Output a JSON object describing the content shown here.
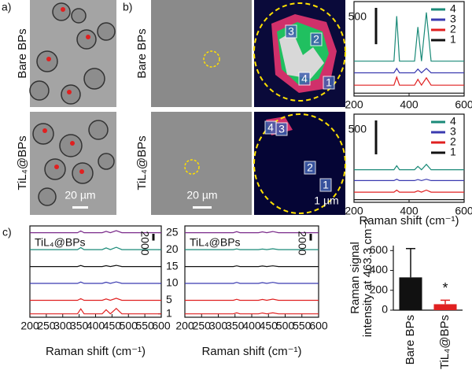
{
  "figure": {
    "panel_a": "a)",
    "panel_b": "b)",
    "panel_c": "c)",
    "row_top": "Bare BPs",
    "row_bottom": "TiL₄@BPs",
    "scale_a": "20 µm",
    "scale_b": "20 µm",
    "scale_map": "1 µm",
    "map_top_labels": [
      "1",
      "2",
      "3",
      "4"
    ],
    "map_bottom_labels": [
      "1",
      "2",
      "3",
      "4"
    ]
  },
  "chart_data": [
    {
      "type": "line",
      "x": [
        200,
        260,
        320,
        345,
        355,
        365,
        400,
        420,
        432,
        445,
        463,
        480,
        520,
        560,
        600
      ],
      "xlim": [
        200,
        600
      ],
      "xticks": [
        200,
        400,
        600
      ],
      "ylim": [
        0,
        1300
      ],
      "scale_bar": 500,
      "series": [
        {
          "name": "4",
          "color": "#1a8a78",
          "values": [
            480,
            480,
            480,
            480,
            1100,
            480,
            480,
            480,
            950,
            480,
            1150,
            480,
            480,
            480,
            480
          ]
        },
        {
          "name": "3",
          "color": "#3a3ab0",
          "values": [
            320,
            320,
            320,
            320,
            380,
            320,
            320,
            320,
            370,
            320,
            380,
            320,
            320,
            320,
            320
          ]
        },
        {
          "name": "2",
          "color": "#e02020",
          "values": [
            150,
            150,
            150,
            150,
            260,
            150,
            150,
            150,
            230,
            150,
            250,
            150,
            150,
            150,
            150
          ]
        },
        {
          "name": "1",
          "color": "#111111",
          "values": [
            40,
            40,
            40,
            40,
            40,
            40,
            40,
            40,
            40,
            40,
            40,
            40,
            40,
            40,
            40
          ]
        }
      ]
    },
    {
      "type": "line",
      "x": [
        200,
        260,
        320,
        345,
        355,
        365,
        400,
        420,
        432,
        445,
        463,
        480,
        520,
        560,
        600
      ],
      "xlim": [
        200,
        600
      ],
      "xticks": [
        200,
        400,
        600
      ],
      "ylim": [
        0,
        1300
      ],
      "scale_bar": 500,
      "xlabel": "Raman shift (cm⁻¹)",
      "series": [
        {
          "name": "4",
          "color": "#1a8a78",
          "values": [
            480,
            480,
            480,
            480,
            540,
            480,
            480,
            480,
            530,
            480,
            560,
            480,
            480,
            480,
            480
          ]
        },
        {
          "name": "3",
          "color": "#3a3ab0",
          "values": [
            320,
            320,
            320,
            320,
            340,
            320,
            320,
            320,
            335,
            320,
            340,
            320,
            320,
            320,
            320
          ]
        },
        {
          "name": "2",
          "color": "#e02020",
          "values": [
            150,
            150,
            150,
            150,
            180,
            150,
            150,
            150,
            170,
            150,
            180,
            150,
            150,
            150,
            150
          ]
        },
        {
          "name": "1",
          "color": "#111111",
          "values": [
            40,
            40,
            40,
            40,
            40,
            40,
            40,
            40,
            40,
            40,
            40,
            40,
            40,
            40,
            40
          ]
        }
      ]
    },
    {
      "type": "line",
      "title": "TiL₄@BPs",
      "x": [
        200,
        260,
        320,
        345,
        355,
        365,
        400,
        420,
        432,
        445,
        463,
        480,
        520,
        560,
        600
      ],
      "xlim": [
        200,
        600
      ],
      "xticks": [
        200,
        250,
        300,
        350,
        400,
        450,
        500,
        550,
        600
      ],
      "ylim": [
        0,
        27000
      ],
      "scale_bar": 2000,
      "xlabel": "Raman shift (cm⁻¹)",
      "yticks": [
        {
          "value": 25000,
          "label": "25"
        },
        {
          "value": 20000,
          "label": "20"
        },
        {
          "value": 15000,
          "label": "15"
        },
        {
          "value": 10000,
          "label": "10"
        },
        {
          "value": 5000,
          "label": "5"
        },
        {
          "value": 1000,
          "label": "1"
        }
      ],
      "series": [
        {
          "name": "25",
          "color": "#7a2a8a",
          "values": [
            25000,
            25000,
            25000,
            25000,
            25500,
            25000,
            25000,
            25000,
            25400,
            25000,
            25600,
            25000,
            25000,
            25000,
            25000
          ]
        },
        {
          "name": "20",
          "color": "#1a8a78",
          "values": [
            20000,
            20000,
            20000,
            20000,
            20600,
            20000,
            20000,
            20000,
            20500,
            20000,
            20700,
            20000,
            20000,
            20000,
            20000
          ]
        },
        {
          "name": "15",
          "color": "#111111",
          "values": [
            15000,
            15000,
            15000,
            15000,
            15300,
            15000,
            15000,
            15000,
            15250,
            15000,
            15350,
            15000,
            15000,
            15000,
            15000
          ]
        },
        {
          "name": "10",
          "color": "#3a3ab0",
          "values": [
            10000,
            10000,
            10000,
            10000,
            10400,
            10000,
            10000,
            10000,
            10350,
            10000,
            10450,
            10000,
            10000,
            10000,
            10000
          ]
        },
        {
          "name": "5",
          "color": "#e02020",
          "values": [
            5000,
            5000,
            5000,
            5000,
            5500,
            5000,
            5000,
            5000,
            5400,
            5000,
            5600,
            5000,
            5000,
            5000,
            5000
          ]
        },
        {
          "name": "1",
          "color": "#e02020",
          "values": [
            1000,
            1000,
            1000,
            1000,
            2500,
            1000,
            1000,
            1000,
            2200,
            1000,
            2600,
            1000,
            1000,
            1000,
            1000
          ]
        }
      ]
    },
    {
      "type": "line",
      "title": "TiL₄@BPs",
      "x": [
        200,
        260,
        320,
        345,
        355,
        365,
        400,
        420,
        432,
        445,
        463,
        480,
        520,
        560,
        600
      ],
      "xlim": [
        200,
        600
      ],
      "xticks": [
        200,
        250,
        300,
        350,
        400,
        450,
        500,
        550,
        600
      ],
      "ylim": [
        0,
        27000
      ],
      "scale_bar": 2000,
      "xlabel": "Raman shift (cm⁻¹)",
      "series": [
        {
          "name": "25",
          "color": "#7a2a8a",
          "values": [
            25000,
            25000,
            25000,
            25000,
            25300,
            25000,
            25000,
            25000,
            25250,
            25000,
            25350,
            25000,
            25000,
            25000,
            25000
          ]
        },
        {
          "name": "20",
          "color": "#1a8a78",
          "values": [
            20000,
            20000,
            20000,
            20000,
            20200,
            20000,
            20000,
            20000,
            20150,
            20000,
            20250,
            20000,
            20000,
            20000,
            20000
          ]
        },
        {
          "name": "15",
          "color": "#111111",
          "values": [
            15000,
            15000,
            15000,
            15000,
            15200,
            15000,
            15000,
            15000,
            15150,
            15000,
            15200,
            15000,
            15000,
            15000,
            15000
          ]
        },
        {
          "name": "10",
          "color": "#3a3ab0",
          "values": [
            10000,
            10000,
            10000,
            10000,
            10300,
            10000,
            10000,
            10000,
            10250,
            10000,
            10300,
            10000,
            10000,
            10000,
            10000
          ]
        },
        {
          "name": "5",
          "color": "#e02020",
          "values": [
            5000,
            5000,
            5000,
            5000,
            5300,
            5000,
            5000,
            5000,
            5250,
            5000,
            5350,
            5000,
            5000,
            5000,
            5000
          ]
        },
        {
          "name": "1",
          "color": "#e02020",
          "values": [
            1000,
            1000,
            1000,
            1000,
            1300,
            1000,
            1000,
            1000,
            1250,
            1000,
            1300,
            1000,
            1000,
            1000,
            1000
          ]
        }
      ]
    },
    {
      "type": "bar",
      "ylabel": [
        "Raman signal",
        "intensity at 463.3 cm⁻¹"
      ],
      "categories": [
        "Bare BPs",
        "TiL₄@BPs"
      ],
      "values": [
        330,
        60
      ],
      "errors": [
        290,
        40
      ],
      "colors": [
        "#111111",
        "#e02020"
      ],
      "ylim": [
        0,
        650
      ],
      "yticks": [
        0,
        200,
        400,
        600
      ],
      "annotation": "*"
    }
  ]
}
